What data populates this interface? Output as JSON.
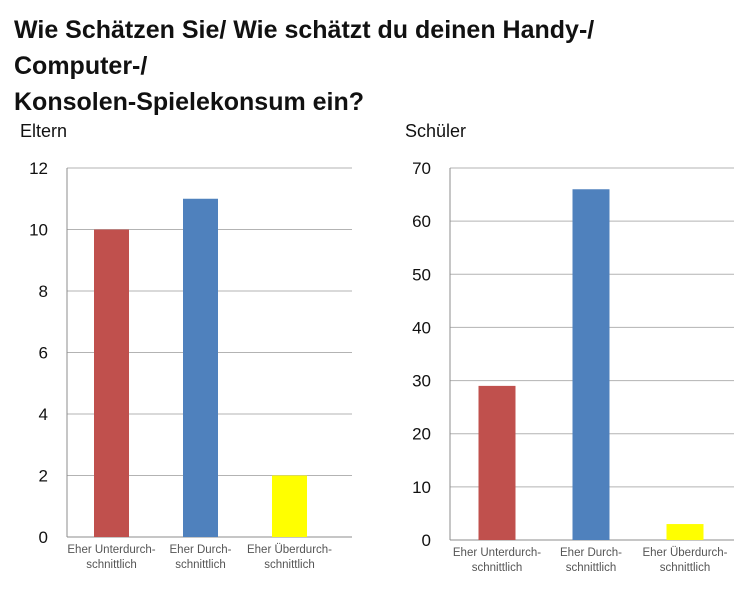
{
  "title": {
    "line1": "Wie Schätzen Sie/ Wie schätzt du deinen Handy-/ Computer-/",
    "line2": "Konsolen-Spielekonsum ein?"
  },
  "chart_data": [
    {
      "type": "bar",
      "label": "Eltern",
      "categories": [
        [
          "Eher Unterdurch-",
          "schnittlich"
        ],
        [
          "Eher Durch-",
          "schnittlich"
        ],
        [
          "Eher Überdurch-",
          "schnittlich"
        ]
      ],
      "values": [
        10,
        11,
        2
      ],
      "colors": [
        "#c0504d",
        "#4f81bd",
        "#ffff00"
      ],
      "ylim": [
        0,
        12
      ],
      "yticks": [
        0,
        2,
        4,
        6,
        8,
        10,
        12
      ],
      "grid": true,
      "legend": "none"
    },
    {
      "type": "bar",
      "label": "Schüler",
      "categories": [
        [
          "Eher Unterdurch-",
          "schnittlich"
        ],
        [
          "Eher Durch-",
          "schnittlich"
        ],
        [
          "Eher Überdurch-",
          "schnittlich"
        ]
      ],
      "values": [
        29,
        66,
        3
      ],
      "colors": [
        "#c0504d",
        "#4f81bd",
        "#ffff00"
      ],
      "ylim": [
        0,
        70
      ],
      "yticks": [
        0,
        10,
        20,
        30,
        40,
        50,
        60,
        70
      ],
      "grid": true,
      "legend": "none"
    }
  ]
}
